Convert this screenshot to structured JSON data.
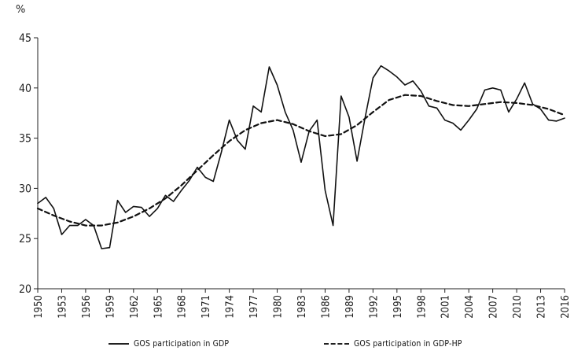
{
  "chart_data": {
    "type": "line",
    "title": "",
    "unit_label": "%",
    "xlabel": "",
    "ylabel": "",
    "xlim": [
      1950,
      2016
    ],
    "ylim": [
      20,
      45
    ],
    "y_ticks": [
      20,
      25,
      30,
      35,
      40,
      45
    ],
    "x_ticks": [
      1950,
      1953,
      1956,
      1959,
      1962,
      1965,
      1968,
      1971,
      1974,
      1977,
      1980,
      1983,
      1986,
      1989,
      1992,
      1995,
      1998,
      2001,
      2004,
      2007,
      2010,
      2013,
      2016
    ],
    "grid": false,
    "legend_position": "bottom",
    "series": [
      {
        "name": "GOS participation in GDP",
        "style": "solid",
        "x": [
          1950,
          1951,
          1952,
          1953,
          1954,
          1955,
          1956,
          1957,
          1958,
          1959,
          1960,
          1961,
          1962,
          1963,
          1964,
          1965,
          1966,
          1967,
          1968,
          1969,
          1970,
          1971,
          1972,
          1973,
          1974,
          1975,
          1976,
          1977,
          1978,
          1979,
          1980,
          1981,
          1982,
          1983,
          1984,
          1985,
          1986,
          1987,
          1988,
          1989,
          1990,
          1991,
          1992,
          1993,
          1994,
          1995,
          1996,
          1997,
          1998,
          1999,
          2000,
          2001,
          2002,
          2003,
          2004,
          2005,
          2006,
          2007,
          2008,
          2009,
          2010,
          2011,
          2012,
          2013,
          2014,
          2015,
          2016
        ],
        "values": [
          28.5,
          29.1,
          28.0,
          25.4,
          26.3,
          26.3,
          26.9,
          26.3,
          24.0,
          24.1,
          28.8,
          27.6,
          28.2,
          28.1,
          27.2,
          28.0,
          29.3,
          28.7,
          29.8,
          30.8,
          32.1,
          31.1,
          30.7,
          33.6,
          36.8,
          34.8,
          33.9,
          38.2,
          37.6,
          42.1,
          40.3,
          37.6,
          35.8,
          32.6,
          35.7,
          36.8,
          29.8,
          26.3,
          39.2,
          37.1,
          32.7,
          37.0,
          41.0,
          42.2,
          41.7,
          41.1,
          40.3,
          40.7,
          39.7,
          38.2,
          38.0,
          36.8,
          36.5,
          35.8,
          36.8,
          37.9,
          39.8,
          40.0,
          39.8,
          37.6,
          38.9,
          40.5,
          38.4,
          37.9,
          36.8,
          36.7,
          37.0
        ]
      },
      {
        "name": "GOS participation in GDP-HP",
        "style": "dashed",
        "x": [
          1950,
          1952,
          1954,
          1956,
          1958,
          1960,
          1962,
          1964,
          1966,
          1968,
          1970,
          1972,
          1974,
          1976,
          1978,
          1980,
          1982,
          1984,
          1986,
          1988,
          1990,
          1992,
          1994,
          1996,
          1998,
          2000,
          2002,
          2004,
          2006,
          2008,
          2010,
          2012,
          2014,
          2016
        ],
        "values": [
          28.0,
          27.3,
          26.7,
          26.3,
          26.3,
          26.6,
          27.2,
          28.0,
          29.0,
          30.3,
          31.8,
          33.3,
          34.7,
          35.8,
          36.5,
          36.8,
          36.4,
          35.7,
          35.2,
          35.4,
          36.3,
          37.6,
          38.8,
          39.3,
          39.2,
          38.7,
          38.3,
          38.2,
          38.4,
          38.6,
          38.5,
          38.3,
          37.9,
          37.3
        ]
      }
    ]
  }
}
